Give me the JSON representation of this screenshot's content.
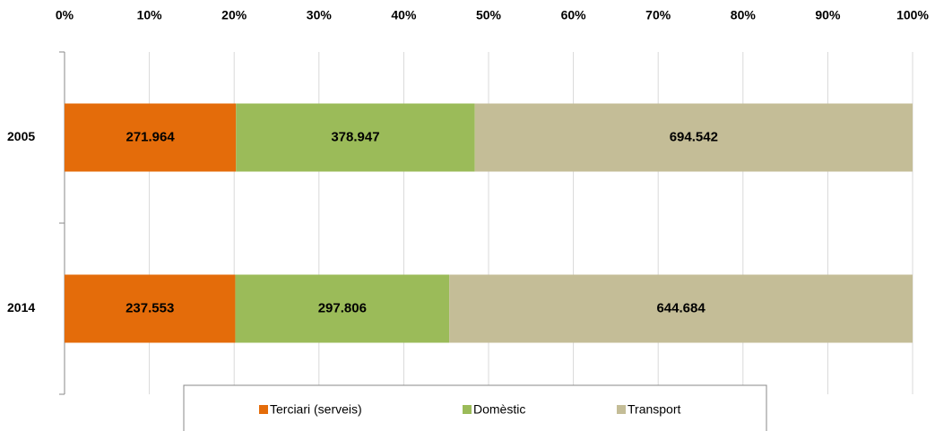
{
  "chart_data": {
    "type": "bar",
    "orientation": "horizontal",
    "stacking": "percent",
    "categories": [
      "2005",
      "2014"
    ],
    "series": [
      {
        "name": "Terciari (serveis)",
        "color": "#e46c0a",
        "values": [
          271964,
          237553
        ],
        "value_labels": [
          "271.964",
          "237.553"
        ]
      },
      {
        "name": "Domèstic",
        "color": "#9bbb59",
        "values": [
          378947,
          297806
        ],
        "value_labels": [
          "378.947",
          "297.806"
        ]
      },
      {
        "name": "Transport",
        "color": "#c4bd97",
        "values": [
          694542,
          644684
        ],
        "value_labels": [
          "694.542",
          "644.684"
        ]
      }
    ],
    "xlim": [
      0,
      100
    ],
    "xticks": [
      {
        "value": 0,
        "label": "0%"
      },
      {
        "value": 10,
        "label": "10%"
      },
      {
        "value": 20,
        "label": "20%"
      },
      {
        "value": 30,
        "label": "30%"
      },
      {
        "value": 40,
        "label": "40%"
      },
      {
        "value": 50,
        "label": "50%"
      },
      {
        "value": 60,
        "label": "60%"
      },
      {
        "value": 70,
        "label": "70%"
      },
      {
        "value": 80,
        "label": "80%"
      },
      {
        "value": 90,
        "label": "90%"
      },
      {
        "value": 100,
        "label": "100%"
      }
    ],
    "grid": true,
    "legend": "bottom"
  }
}
